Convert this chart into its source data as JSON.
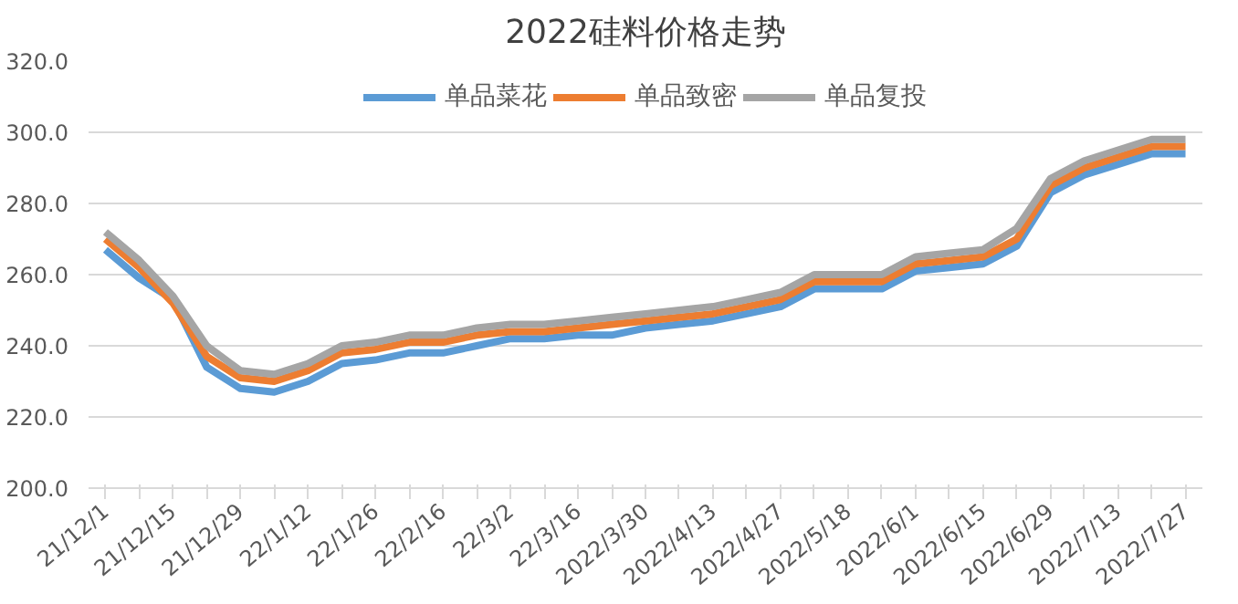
{
  "chart_data": {
    "type": "line",
    "title": "2022硅料价格走势",
    "categories": [
      "21/12/1",
      null,
      "21/12/15",
      null,
      "21/12/29",
      null,
      "22/1/12",
      null,
      "22/1/26",
      null,
      "22/2/16",
      null,
      "22/3/2",
      null,
      "22/3/16",
      null,
      "2022/3/30",
      null,
      "2022/4/13",
      null,
      "2022/4/27",
      null,
      "2022/5/18",
      null,
      "2022/6/1",
      null,
      "2022/6/15",
      null,
      "2022/6/29",
      null,
      "2022/7/13",
      null,
      "2022/7/27"
    ],
    "series": [
      {
        "name": "单品菜花",
        "color": "#5b9bd5",
        "values": [
          267,
          259,
          253,
          234,
          228,
          227,
          230,
          235,
          236,
          238,
          238,
          240,
          242,
          242,
          243,
          243,
          245,
          246,
          247,
          249,
          251,
          256,
          256,
          256,
          261,
          262,
          263,
          268,
          283,
          288,
          291,
          294,
          294
        ]
      },
      {
        "name": "单品致密",
        "color": "#ed7d31",
        "values": [
          270,
          262,
          252,
          237,
          231,
          230,
          233,
          238,
          239,
          241,
          241,
          243,
          244,
          244,
          245,
          246,
          247,
          248,
          249,
          251,
          253,
          258,
          258,
          258,
          263,
          264,
          265,
          270,
          285,
          290,
          293,
          296,
          296
        ]
      },
      {
        "name": "单品复投",
        "color": "#a5a5a5",
        "values": [
          272,
          264,
          254,
          240,
          233,
          232,
          235,
          240,
          241,
          243,
          243,
          245,
          246,
          246,
          247,
          248,
          249,
          250,
          251,
          253,
          255,
          260,
          260,
          260,
          265,
          266,
          267,
          273,
          287,
          292,
          295,
          298,
          298
        ]
      }
    ],
    "ylim": [
      200,
      320
    ],
    "yticks": [
      {
        "value": 200,
        "label": "200.0"
      },
      {
        "value": 220,
        "label": "220.0"
      },
      {
        "value": 240,
        "label": "240.0"
      },
      {
        "value": 260,
        "label": "260.0"
      },
      {
        "value": 280,
        "label": "280.0"
      },
      {
        "value": 300,
        "label": "300.0"
      },
      {
        "value": 320,
        "label": "320.0"
      }
    ],
    "grid": "y",
    "legend": "top",
    "line_style": "solid",
    "marker": "none"
  }
}
